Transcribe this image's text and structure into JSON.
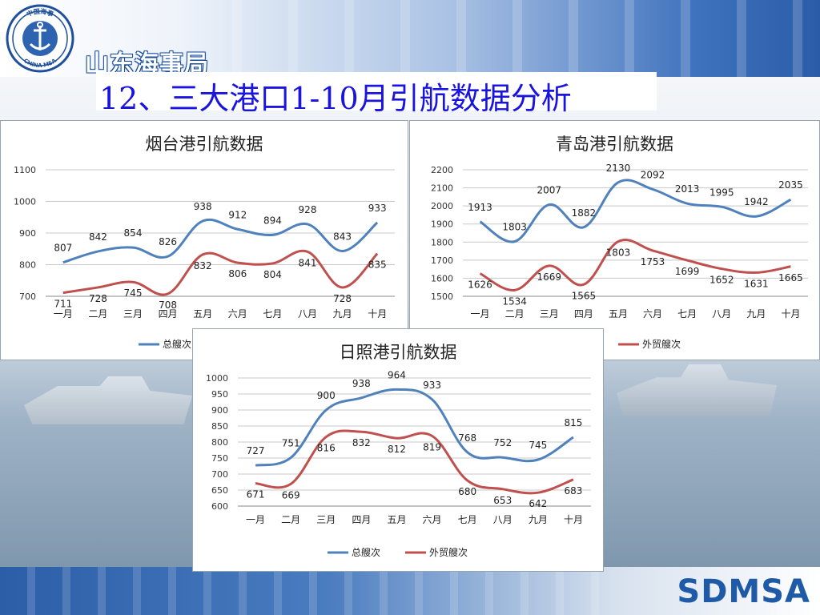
{
  "header": {
    "org_name": "山东海事局",
    "emblem_top_text": "中国海事",
    "emblem_bottom_text": "CHINA MSA",
    "title": "12、三大港口1-10月引航数据分析"
  },
  "footer": {
    "logo_text": "SDMSA"
  },
  "colors": {
    "series_total": "#4f81bd",
    "series_foreign": "#c0504d",
    "title_blue": "#1a14e0"
  },
  "chart_data": [
    {
      "id": "yantai",
      "type": "line",
      "title": "烟台港引航数据",
      "categories": [
        "一月",
        "二月",
        "三月",
        "四月",
        "五月",
        "六月",
        "七月",
        "八月",
        "九月",
        "十月"
      ],
      "series": [
        {
          "name": "总艘次",
          "values": [
            807,
            842,
            854,
            826,
            938,
            912,
            894,
            928,
            843,
            933
          ]
        },
        {
          "name": "外贸艘次",
          "values": [
            711,
            728,
            745,
            708,
            832,
            806,
            804,
            841,
            728,
            835
          ]
        }
      ],
      "ylim": [
        700,
        1100
      ],
      "yticks": [
        700,
        800,
        900,
        1000,
        1100
      ],
      "grid": true,
      "legend": "bottom"
    },
    {
      "id": "qingdao",
      "type": "line",
      "title": "青岛港引航数据",
      "categories": [
        "一月",
        "二月",
        "三月",
        "四月",
        "五月",
        "六月",
        "七月",
        "八月",
        "九月",
        "十月"
      ],
      "series": [
        {
          "name": "总艘次",
          "values": [
            1913,
            1803,
            2007,
            1882,
            2130,
            2092,
            2013,
            1995,
            1942,
            2035
          ]
        },
        {
          "name": "外贸艘次",
          "values": [
            1626,
            1534,
            1669,
            1565,
            1803,
            1753,
            1699,
            1652,
            1631,
            1665
          ]
        }
      ],
      "ylim": [
        1500,
        2200
      ],
      "yticks": [
        1500,
        1600,
        1700,
        1800,
        1900,
        2000,
        2100,
        2200
      ],
      "grid": true,
      "legend": "bottom"
    },
    {
      "id": "rizhao",
      "type": "line",
      "title": "日照港引航数据",
      "categories": [
        "一月",
        "二月",
        "三月",
        "四月",
        "五月",
        "六月",
        "七月",
        "八月",
        "九月",
        "十月"
      ],
      "series": [
        {
          "name": "总艘次",
          "values": [
            727,
            751,
            900,
            938,
            964,
            933,
            768,
            752,
            745,
            815
          ]
        },
        {
          "name": "外贸艘次",
          "values": [
            671,
            669,
            816,
            832,
            812,
            819,
            680,
            653,
            642,
            683
          ]
        }
      ],
      "ylim": [
        600,
        1000
      ],
      "yticks": [
        600,
        650,
        700,
        750,
        800,
        850,
        900,
        950,
        1000
      ],
      "grid": true,
      "legend": "bottom"
    }
  ]
}
